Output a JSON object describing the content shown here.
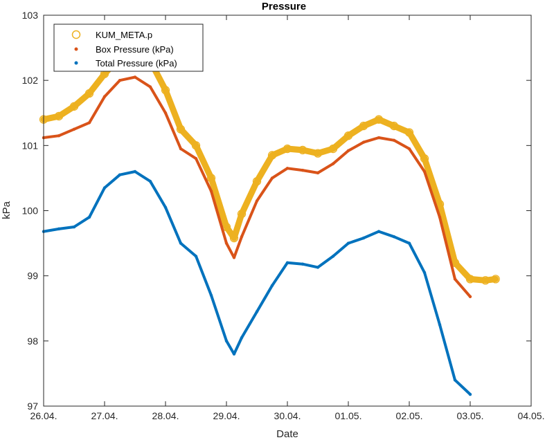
{
  "chart_data": {
    "type": "line",
    "title": "Pressure",
    "xlabel": "Date",
    "ylabel": "kPa",
    "xlim": [
      "26.04.",
      "04.05."
    ],
    "ylim": [
      97,
      103
    ],
    "x_ticks": [
      "26.04.",
      "27.04.",
      "28.04.",
      "29.04.",
      "30.04.",
      "01.05.",
      "02.05.",
      "03.05.",
      "04.05."
    ],
    "y_ticks": [
      "97",
      "98",
      "99",
      "100",
      "101",
      "102",
      "103"
    ],
    "grid": false,
    "legend_position": "top-left",
    "series": [
      {
        "name": "KUM_META.p",
        "marker": "circle",
        "color": "#EDB120",
        "x": [
          "26.04. 00:00",
          "26.04. 06:00",
          "26.04. 12:00",
          "26.04. 18:00",
          "27.04. 00:00",
          "27.04. 06:00",
          "27.04. 12:00",
          "27.04. 18:00",
          "28.04. 00:00",
          "28.04. 06:00",
          "28.04. 12:00",
          "28.04. 18:00",
          "29.04. 00:00",
          "29.04. 03:00",
          "29.04. 06:00",
          "29.04. 12:00",
          "29.04. 18:00",
          "30.04. 00:00",
          "30.04. 06:00",
          "30.04. 12:00",
          "30.04. 18:00",
          "01.05. 00:00",
          "01.05. 06:00",
          "01.05. 12:00",
          "01.05. 18:00",
          "02.05. 00:00",
          "02.05. 06:00",
          "02.05. 12:00",
          "02.05. 18:00",
          "03.05. 00:00",
          "03.05. 06:00",
          "03.05. 10:00"
        ],
        "y": [
          101.4,
          101.45,
          101.6,
          101.8,
          102.1,
          102.35,
          102.4,
          102.3,
          101.85,
          101.25,
          101.0,
          100.5,
          99.75,
          99.58,
          99.95,
          100.45,
          100.85,
          100.95,
          100.93,
          100.88,
          100.95,
          101.15,
          101.3,
          101.4,
          101.3,
          101.2,
          100.8,
          100.1,
          99.2,
          98.95,
          98.93,
          98.95
        ]
      },
      {
        "name": "Box Pressure (kPa)",
        "marker": "point",
        "color": "#D95319",
        "x": [
          "26.04. 00:00",
          "26.04. 06:00",
          "26.04. 12:00",
          "26.04. 18:00",
          "27.04. 00:00",
          "27.04. 06:00",
          "27.04. 12:00",
          "27.04. 18:00",
          "28.04. 00:00",
          "28.04. 06:00",
          "28.04. 12:00",
          "28.04. 18:00",
          "29.04. 00:00",
          "29.04. 03:00",
          "29.04. 06:00",
          "29.04. 12:00",
          "29.04. 18:00",
          "30.04. 00:00",
          "30.04. 06:00",
          "30.04. 12:00",
          "30.04. 18:00",
          "01.05. 00:00",
          "01.05. 06:00",
          "01.05. 12:00",
          "01.05. 18:00",
          "02.05. 00:00",
          "02.05. 06:00",
          "02.05. 12:00",
          "02.05. 18:00",
          "03.05. 00:00"
        ],
        "y": [
          101.12,
          101.15,
          101.25,
          101.35,
          101.75,
          102.0,
          102.05,
          101.9,
          101.5,
          100.95,
          100.8,
          100.3,
          99.5,
          99.28,
          99.6,
          100.15,
          100.5,
          100.65,
          100.62,
          100.58,
          100.72,
          100.92,
          101.05,
          101.12,
          101.08,
          100.95,
          100.6,
          99.9,
          98.95,
          98.68
        ]
      },
      {
        "name": "Total Pressure (kPa)",
        "marker": "point",
        "color": "#0072BD",
        "x": [
          "26.04. 00:00",
          "26.04. 06:00",
          "26.04. 12:00",
          "26.04. 18:00",
          "27.04. 00:00",
          "27.04. 06:00",
          "27.04. 12:00",
          "27.04. 18:00",
          "28.04. 00:00",
          "28.04. 06:00",
          "28.04. 12:00",
          "28.04. 18:00",
          "29.04. 00:00",
          "29.04. 03:00",
          "29.04. 06:00",
          "29.04. 12:00",
          "29.04. 18:00",
          "30.04. 00:00",
          "30.04. 06:00",
          "30.04. 12:00",
          "30.04. 18:00",
          "01.05. 00:00",
          "01.05. 06:00",
          "01.05. 12:00",
          "01.05. 18:00",
          "02.05. 00:00",
          "02.05. 06:00",
          "02.05. 12:00",
          "02.05. 18:00",
          "03.05. 00:00"
        ],
        "y": [
          99.68,
          99.72,
          99.75,
          99.9,
          100.35,
          100.55,
          100.6,
          100.45,
          100.05,
          99.5,
          99.3,
          98.7,
          98.0,
          97.8,
          98.05,
          98.45,
          98.85,
          99.2,
          99.18,
          99.13,
          99.3,
          99.5,
          99.58,
          99.68,
          99.6,
          99.5,
          99.05,
          98.25,
          97.4,
          97.18
        ]
      }
    ]
  }
}
